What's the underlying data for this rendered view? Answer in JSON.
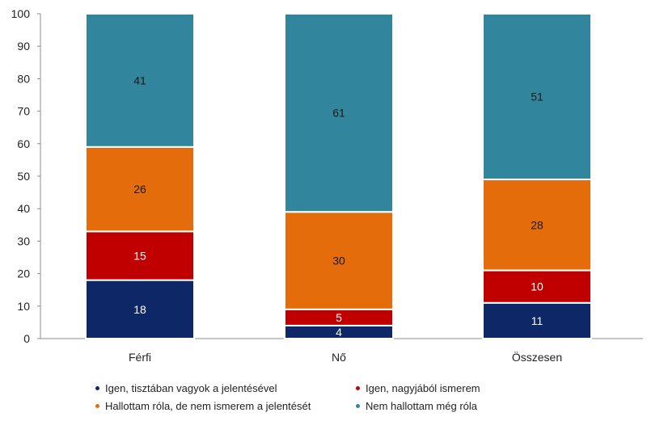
{
  "chart_data": {
    "type": "bar",
    "stacked": true,
    "categories": [
      "Férfi",
      "Nő",
      "Összesen"
    ],
    "series": [
      {
        "name": "Igen, tisztában vagyok a jelentésével",
        "color": "#0e2766",
        "values": [
          18,
          4,
          11
        ]
      },
      {
        "name": "Igen, nagyjából ismerem",
        "color": "#c00000",
        "values": [
          15,
          5,
          10
        ]
      },
      {
        "name": "Hallottam róla, de nem ismerem a jelentését",
        "color": "#e46c0a",
        "values": [
          26,
          30,
          28
        ]
      },
      {
        "name": "Nem hallottam még róla",
        "color": "#31859c",
        "values": [
          41,
          61,
          51
        ]
      }
    ],
    "ylim": [
      0,
      100
    ],
    "yticks": [
      "0",
      "10",
      "20",
      "30",
      "40",
      "50",
      "60",
      "70",
      "80",
      "90",
      "100"
    ],
    "grid": false,
    "data_labels": true,
    "legend_position": "bottom"
  }
}
